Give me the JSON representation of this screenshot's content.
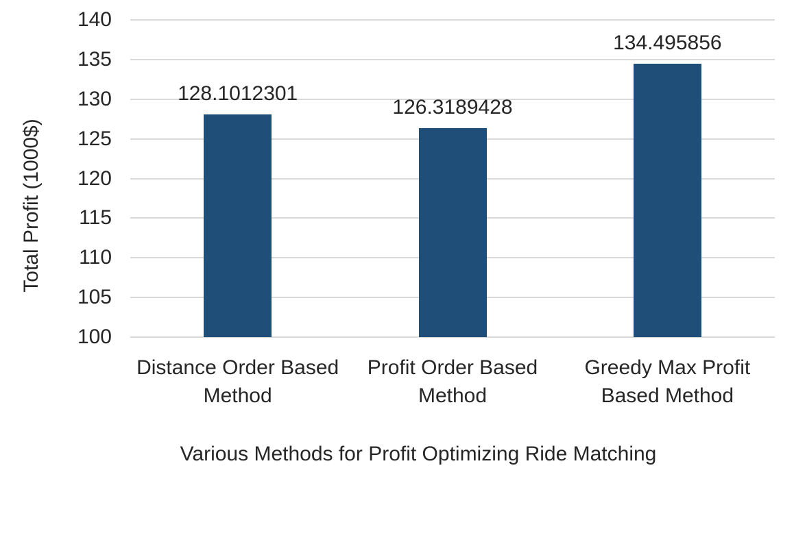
{
  "chart_data": {
    "type": "bar",
    "title": "",
    "categories": [
      "Distance Order Based Method",
      "Profit Order Based Method",
      "Greedy Max Profit Based Method"
    ],
    "category_lines": [
      [
        "Distance Order Based",
        "Method"
      ],
      [
        "Profit Order Based",
        "Method"
      ],
      [
        "Greedy Max Profit",
        "Based Method"
      ]
    ],
    "values": [
      128.1012301,
      126.3189428,
      134.495856
    ],
    "data_labels": [
      "128.1012301",
      "126.3189428",
      "134.495856"
    ],
    "xlabel": "Various Methods for Profit Optimizing Ride Matching",
    "ylabel": "Total Profit (1000$)",
    "ylim": [
      100,
      140
    ],
    "yticks": [
      100,
      105,
      110,
      115,
      120,
      125,
      130,
      135,
      140
    ],
    "grid": true,
    "legend_position": "none",
    "colors": {
      "bar": "#1F4E79",
      "gridline": "#D9D9D9",
      "text": "#262626",
      "background": "#FFFFFF"
    }
  }
}
